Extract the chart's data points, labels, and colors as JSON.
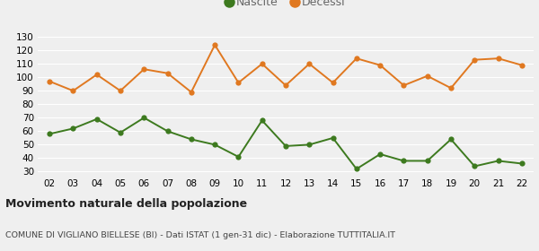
{
  "years": [
    "02",
    "03",
    "04",
    "05",
    "06",
    "07",
    "08",
    "09",
    "10",
    "11",
    "12",
    "13",
    "14",
    "15",
    "16",
    "17",
    "18",
    "19",
    "20",
    "21",
    "22"
  ],
  "nascite": [
    58,
    62,
    69,
    59,
    70,
    60,
    54,
    50,
    41,
    68,
    49,
    50,
    55,
    32,
    43,
    38,
    38,
    54,
    34,
    38,
    36
  ],
  "decessi": [
    97,
    90,
    102,
    90,
    106,
    103,
    89,
    124,
    96,
    110,
    94,
    110,
    96,
    114,
    109,
    94,
    101,
    92,
    113,
    114,
    109
  ],
  "nascite_color": "#3d7a1f",
  "decessi_color": "#e07820",
  "bg_color": "#efefef",
  "grid_color": "#ffffff",
  "title": "Movimento naturale della popolazione",
  "subtitle": "COMUNE DI VIGLIANO BIELLESE (BI) - Dati ISTAT (1 gen-31 dic) - Elaborazione TUTTITALIA.IT",
  "ylim": [
    27,
    135
  ],
  "yticks": [
    30,
    40,
    50,
    60,
    70,
    80,
    90,
    100,
    110,
    120,
    130
  ],
  "legend_nascite": "Nascite",
  "legend_decessi": "Decessi",
  "marker_size": 4.5,
  "linewidth": 1.4
}
